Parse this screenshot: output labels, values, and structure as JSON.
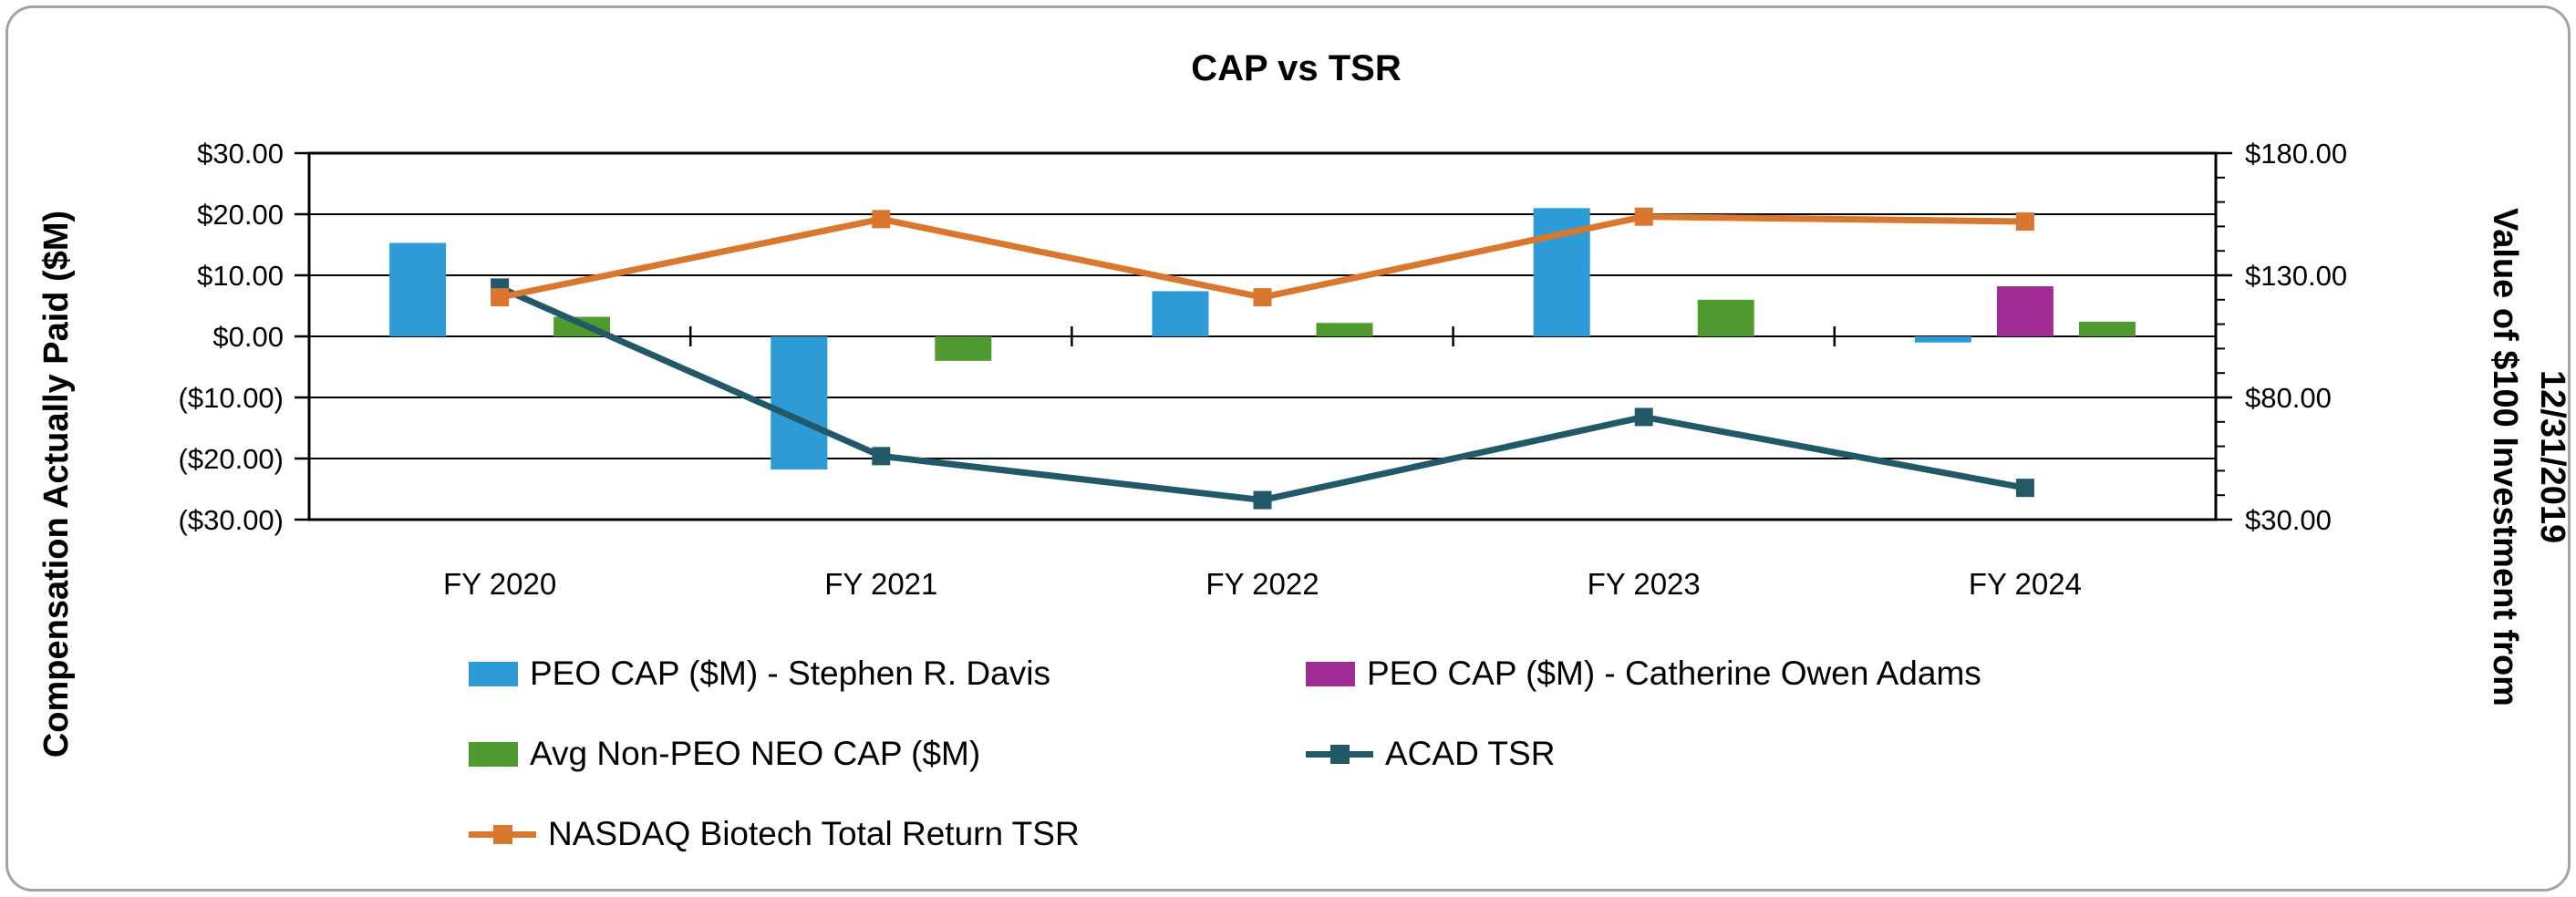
{
  "title": "CAP vs TSR",
  "chart_data": {
    "type": "combo-bar-line",
    "categories": [
      "FY 2020",
      "FY 2021",
      "FY 2022",
      "FY 2023",
      "FY 2024"
    ],
    "bar_series": [
      {
        "name": "PEO CAP ($M) - Stephen R. Davis",
        "color": "#2D9CD6",
        "axis": "left",
        "values": [
          15.3,
          -21.8,
          7.4,
          21.0,
          -1.0
        ]
      },
      {
        "name": "PEO CAP ($M) - Catherine Owen Adams",
        "color": "#A02C93",
        "axis": "left",
        "values": [
          null,
          null,
          null,
          null,
          8.2
        ]
      },
      {
        "name": "Avg Non-PEO NEO CAP ($M)",
        "color": "#4F9A2E",
        "axis": "left",
        "values": [
          3.2,
          -4.0,
          2.2,
          6.0,
          2.4
        ]
      }
    ],
    "line_series": [
      {
        "name": "ACAD TSR",
        "color": "#215968",
        "axis": "right",
        "values": [
          125,
          56,
          38,
          72,
          43
        ]
      },
      {
        "name": "NASDAQ Biotech Total Return TSR",
        "color": "#D9772E",
        "axis": "right",
        "values": [
          121,
          153,
          121,
          154,
          152
        ]
      }
    ],
    "left_axis": {
      "title": "Compensation Actually Paid ($M)",
      "min": -30,
      "max": 30,
      "ticks": [
        {
          "v": 30,
          "label": "$30.00"
        },
        {
          "v": 20,
          "label": "$20.00"
        },
        {
          "v": 10,
          "label": "$10.00"
        },
        {
          "v": 0,
          "label": "$0.00"
        },
        {
          "v": -10,
          "label": "($10.00)"
        },
        {
          "v": -20,
          "label": "($20.00)"
        },
        {
          "v": -30,
          "label": "($30.00)"
        }
      ]
    },
    "right_axis": {
      "title_lines": [
        "Value of $100 Investment from",
        "12/31/2019"
      ],
      "min": 30,
      "max": 180,
      "minor_step": 10,
      "ticks": [
        {
          "v": 180,
          "label": "$180.00"
        },
        {
          "v": 130,
          "label": "$130.00"
        },
        {
          "v": 80,
          "label": "$80.00"
        },
        {
          "v": 30,
          "label": "$30.00"
        }
      ]
    },
    "grid": "horizontal-black",
    "legend_position": "bottom-left-two-columns"
  }
}
